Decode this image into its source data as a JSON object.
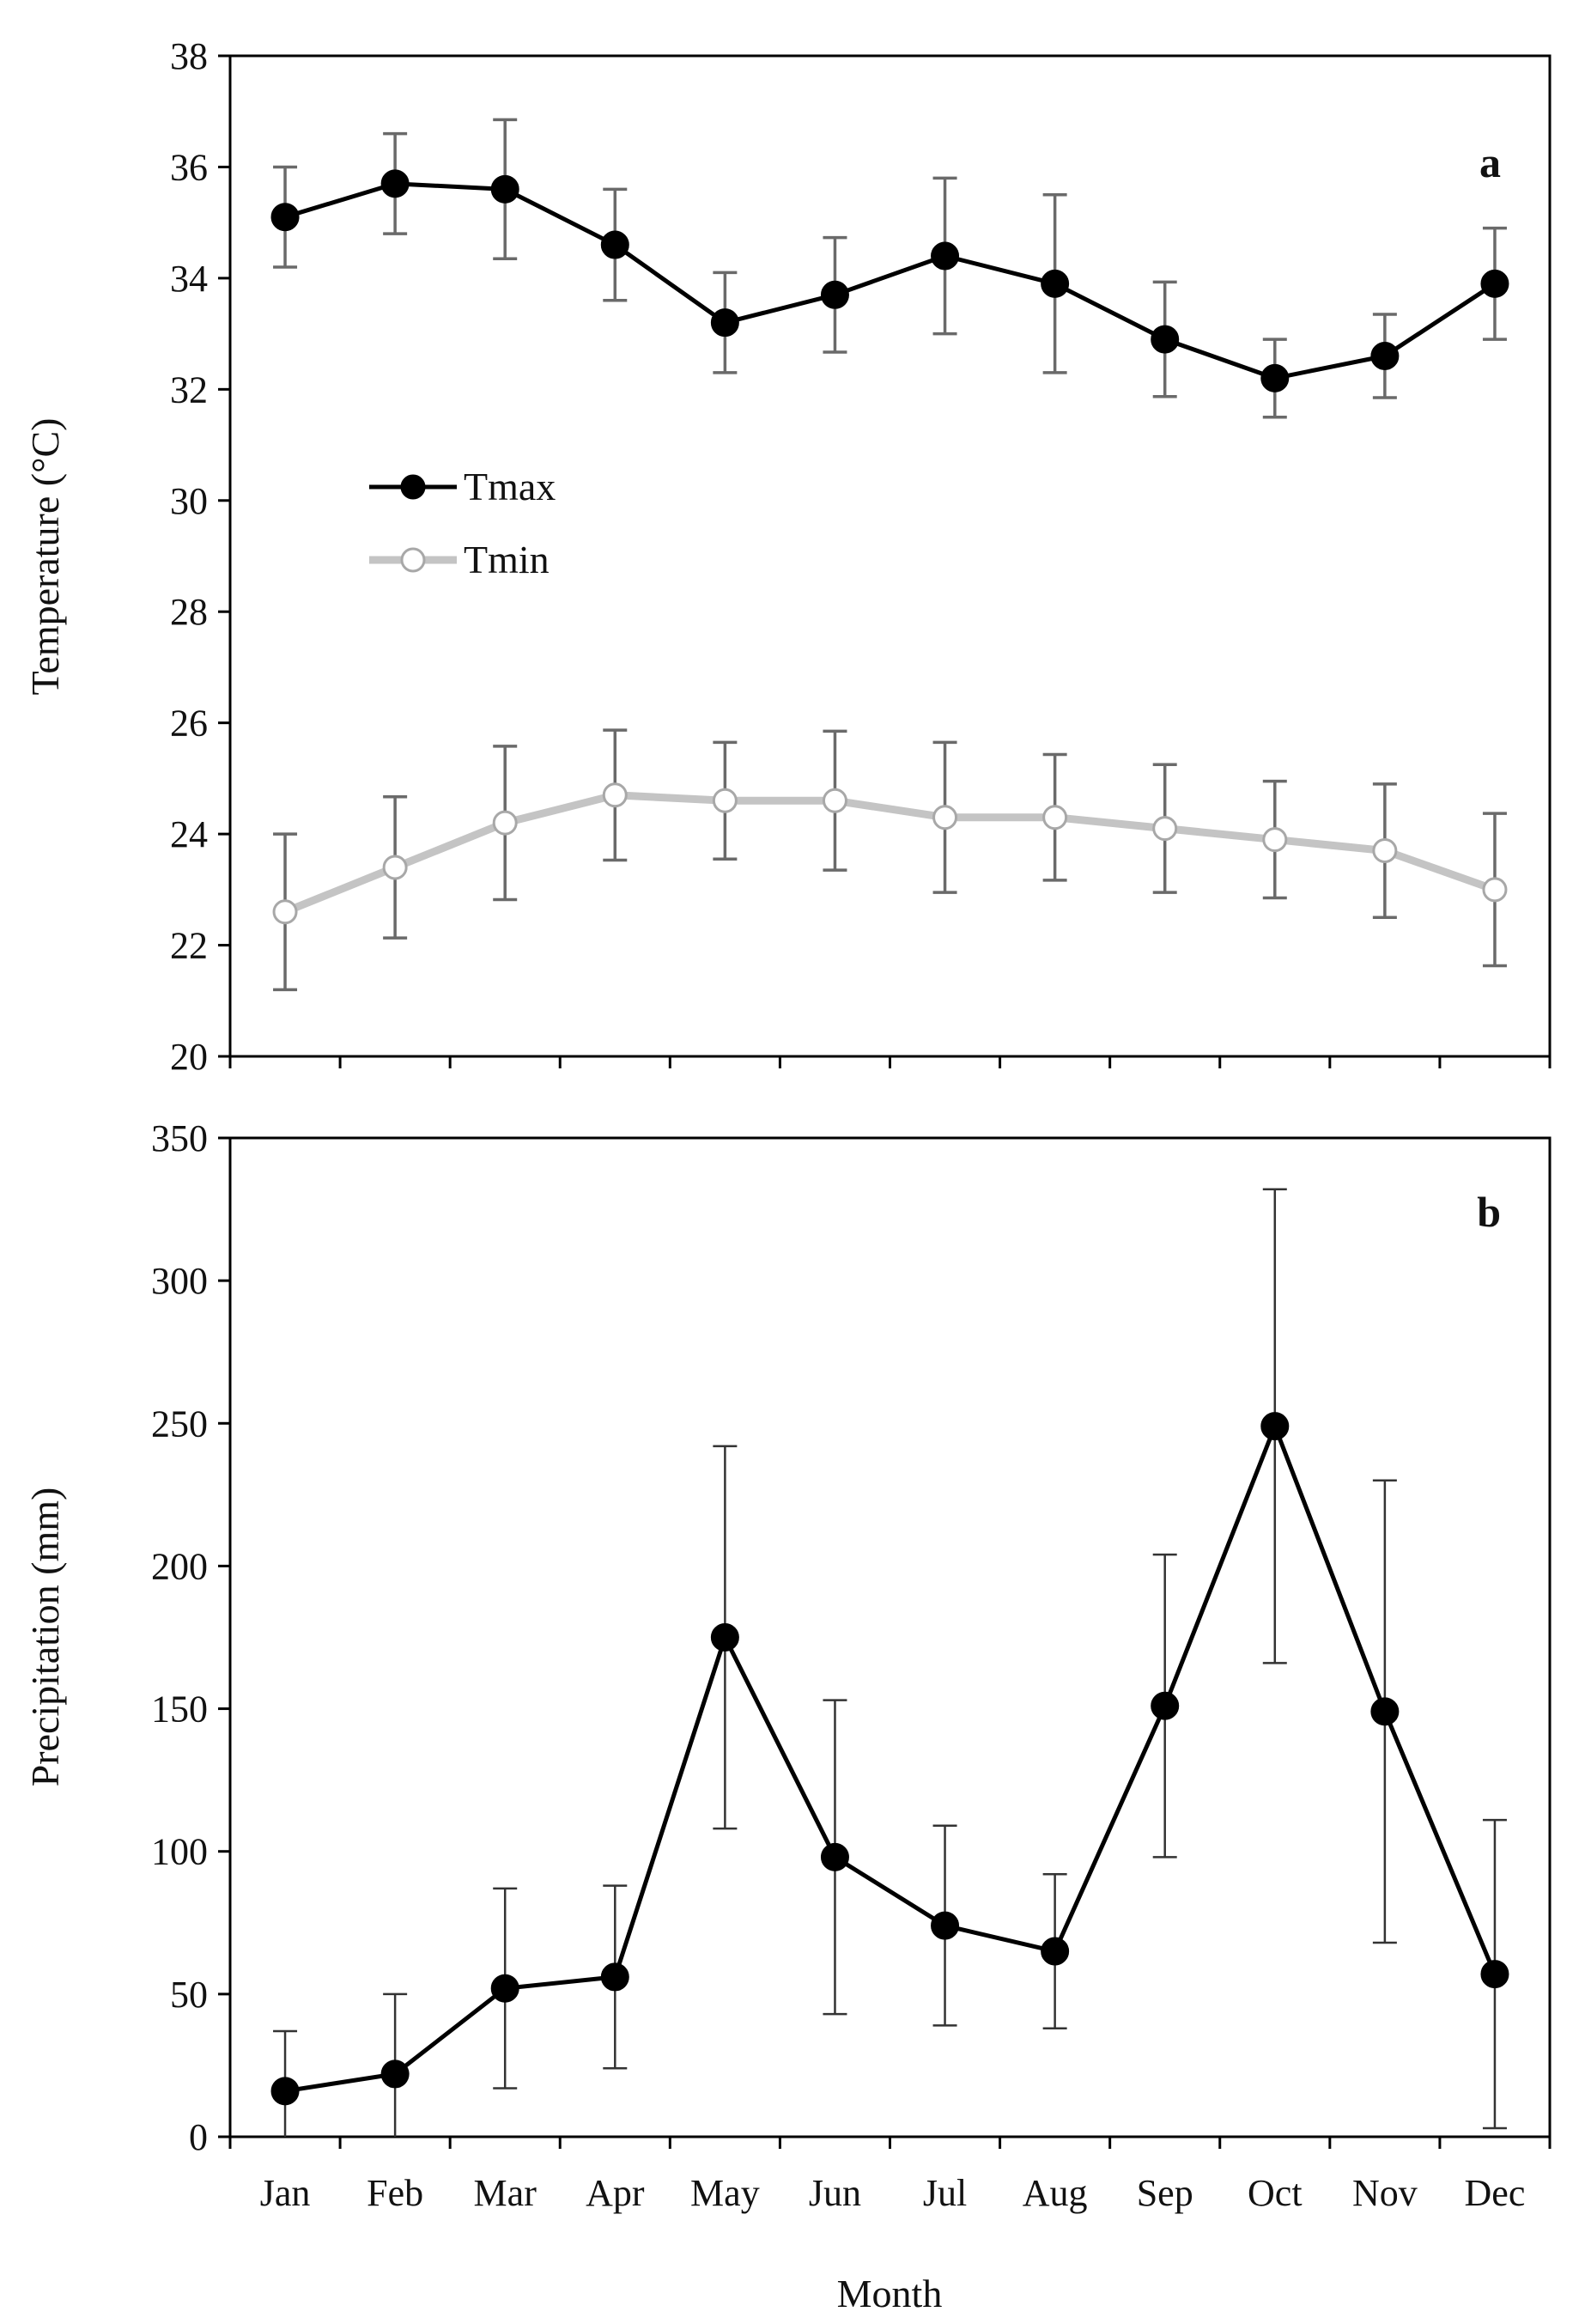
{
  "chart_data": [
    {
      "type": "line",
      "panel_label": "a",
      "title": "",
      "xlabel": "",
      "ylabel": "Temperature (°C)",
      "ylim": [
        20,
        38
      ],
      "y_ticks": [
        20,
        22,
        24,
        26,
        28,
        30,
        32,
        34,
        36,
        38
      ],
      "categories": [
        "Jan",
        "Feb",
        "Mar",
        "Apr",
        "May",
        "Jun",
        "Jul",
        "Aug",
        "Sep",
        "Oct",
        "Nov",
        "Dec"
      ],
      "legend_position": "upper-left",
      "series": [
        {
          "name": "Tmax",
          "color": "#000000",
          "marker": "filled-circle",
          "values": [
            35.1,
            35.7,
            35.6,
            34.6,
            33.2,
            33.7,
            34.4,
            33.9,
            32.9,
            32.2,
            32.6,
            33.9
          ],
          "error": [
            0.9,
            0.9,
            1.25,
            1.0,
            0.9,
            1.03,
            1.4,
            1.6,
            1.03,
            0.7,
            0.75,
            1.0
          ]
        },
        {
          "name": "Tmin",
          "color": "#c4c4c4",
          "marker": "open-circle",
          "values": [
            22.6,
            23.4,
            24.2,
            24.7,
            24.6,
            24.6,
            24.3,
            24.3,
            24.1,
            23.9,
            23.7,
            23.0
          ],
          "error": [
            1.4,
            1.27,
            1.38,
            1.17,
            1.05,
            1.25,
            1.35,
            1.13,
            1.15,
            1.05,
            1.2,
            1.37
          ]
        }
      ]
    },
    {
      "type": "line",
      "panel_label": "b",
      "title": "",
      "xlabel": "Month",
      "ylabel": "Precipitation (mm)",
      "ylim": [
        0,
        350
      ],
      "y_ticks": [
        0,
        50,
        100,
        150,
        200,
        250,
        300,
        350
      ],
      "categories": [
        "Jan",
        "Feb",
        "Mar",
        "Apr",
        "May",
        "Jun",
        "Jul",
        "Aug",
        "Sep",
        "Oct",
        "Nov",
        "Dec"
      ],
      "series": [
        {
          "name": "Precipitation",
          "color": "#000000",
          "marker": "filled-circle",
          "values": [
            16,
            22,
            52,
            56,
            175,
            98,
            74,
            65,
            151,
            249,
            149,
            57
          ],
          "error": [
            21,
            28,
            35,
            32,
            67,
            55,
            35,
            27,
            53,
            83,
            81,
            54
          ]
        }
      ]
    }
  ]
}
